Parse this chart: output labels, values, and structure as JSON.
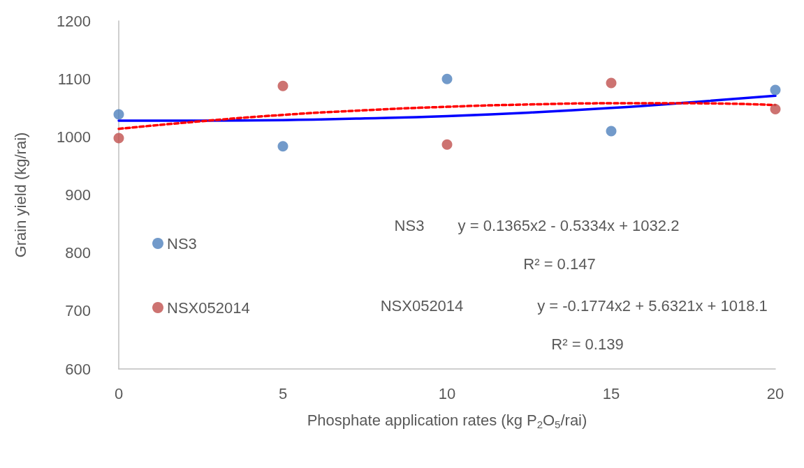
{
  "chart_data": {
    "type": "scatter",
    "xlabel": "Phosphate application rates (kg P$_{2}$O$_{5}$/rai)",
    "ylabel": "Grain yield (kg/rai)",
    "xlim": [
      0,
      20
    ],
    "xticks": [
      0,
      5,
      10,
      15,
      20
    ],
    "ylim": [
      600,
      1200
    ],
    "yticks": [
      600,
      700,
      800,
      900,
      1000,
      1100,
      1200
    ],
    "grid": false,
    "legend": "left",
    "series": [
      {
        "name": "NS3",
        "color": "#4f81bd",
        "marker": "circle",
        "x": [
          0,
          5,
          10,
          15,
          20
        ],
        "values": [
          1039,
          984,
          1100,
          1010,
          1081
        ]
      },
      {
        "name": "NSX052014",
        "color": "#c0504d",
        "marker": "circle",
        "x": [
          0,
          5,
          10,
          15,
          20
        ],
        "values": [
          998,
          1088,
          987,
          1093,
          1048
        ]
      },
      {
        "type": "line",
        "color": "#0000ff",
        "line_style": "solid",
        "marker": "none",
        "x": [
          0,
          2.5,
          5,
          7.5,
          10,
          12.5,
          15,
          17.5,
          20
        ],
        "values": [
          1028,
          1028,
          1029,
          1032,
          1036,
          1042,
          1050,
          1060,
          1071
        ]
      },
      {
        "type": "line",
        "color": "#ff0000",
        "line_style": "dashed",
        "marker": "none",
        "x": [
          0,
          2.5,
          5,
          7.5,
          10,
          12.5,
          15,
          17.5,
          20
        ],
        "values": [
          1014,
          1027,
          1038,
          1046,
          1052,
          1056,
          1058,
          1058,
          1055
        ]
      }
    ],
    "annotations": [
      "NS3",
      "y = 0.1365x2 - 0.5334x + 1032.2",
      "R² = 0.147",
      "NSX052014",
      "y = -0.1774x2 + 5.6321x + 1018.1",
      "R² = 0.139"
    ]
  }
}
